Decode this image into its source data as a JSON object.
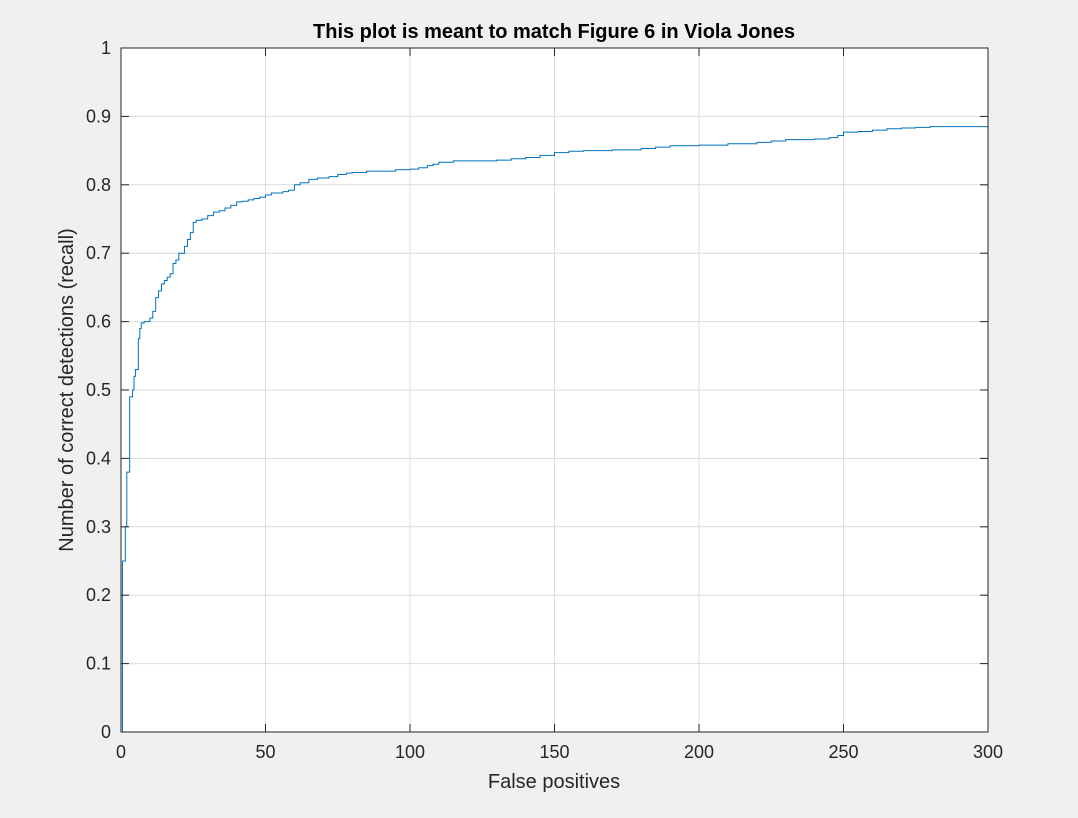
{
  "chart_data": {
    "type": "line",
    "title": "This plot is meant to match Figure 6 in Viola Jones",
    "xlabel": "False positives",
    "ylabel": "Number of correct detections (recall)",
    "xlim": [
      0,
      300
    ],
    "ylim": [
      0,
      1
    ],
    "xticks": [
      0,
      50,
      100,
      150,
      200,
      250,
      300
    ],
    "yticks": [
      0,
      0.1,
      0.2,
      0.3,
      0.4,
      0.5,
      0.6,
      0.7,
      0.8,
      0.9,
      1
    ],
    "xtick_labels": [
      "0",
      "50",
      "100",
      "150",
      "200",
      "250",
      "300"
    ],
    "ytick_labels": [
      "0",
      "0.1",
      "0.2",
      "0.3",
      "0.4",
      "0.5",
      "0.6",
      "0.7",
      "0.8",
      "0.9",
      "1"
    ],
    "grid": true,
    "step": true,
    "colors": {
      "line": "#0072bd",
      "grid": "#dcdcdc",
      "axes": "#262626",
      "plot_bg": "#ffffff",
      "figure_bg": "#f0f0f0"
    },
    "series": [
      {
        "x": [
          0,
          0.5,
          1,
          1.5,
          2,
          3,
          3.5,
          4,
          4.5,
          5,
          6,
          6.5,
          7,
          8,
          10,
          11,
          12,
          13,
          14,
          15,
          16,
          17,
          18,
          19,
          20,
          21,
          22,
          23,
          24,
          25,
          26,
          28,
          30,
          32,
          34,
          36,
          38,
          40,
          42,
          44,
          46,
          48,
          50,
          52,
          56,
          58,
          60,
          62,
          65,
          68,
          72,
          75,
          78,
          80,
          85,
          90,
          95,
          100,
          103,
          106,
          108,
          110,
          115,
          120,
          125,
          130,
          135,
          140,
          145,
          150,
          155,
          160,
          170,
          180,
          185,
          190,
          200,
          210,
          220,
          225,
          230,
          240,
          245,
          248,
          250,
          255,
          260,
          265,
          270,
          275,
          280,
          290,
          300
        ],
        "y": [
          0,
          0.25,
          0.25,
          0.3,
          0.38,
          0.49,
          0.49,
          0.5,
          0.52,
          0.53,
          0.575,
          0.59,
          0.598,
          0.6,
          0.605,
          0.615,
          0.635,
          0.645,
          0.655,
          0.66,
          0.665,
          0.67,
          0.685,
          0.69,
          0.7,
          0.7,
          0.71,
          0.72,
          0.73,
          0.745,
          0.748,
          0.75,
          0.755,
          0.76,
          0.762,
          0.766,
          0.77,
          0.775,
          0.776,
          0.778,
          0.78,
          0.782,
          0.785,
          0.788,
          0.79,
          0.792,
          0.8,
          0.803,
          0.808,
          0.81,
          0.812,
          0.815,
          0.817,
          0.818,
          0.82,
          0.82,
          0.822,
          0.823,
          0.825,
          0.828,
          0.83,
          0.833,
          0.835,
          0.835,
          0.835,
          0.836,
          0.838,
          0.84,
          0.843,
          0.847,
          0.849,
          0.85,
          0.851,
          0.853,
          0.855,
          0.857,
          0.858,
          0.86,
          0.862,
          0.864,
          0.866,
          0.867,
          0.869,
          0.872,
          0.877,
          0.878,
          0.88,
          0.882,
          0.883,
          0.884,
          0.885,
          0.885,
          0.885
        ]
      }
    ]
  }
}
